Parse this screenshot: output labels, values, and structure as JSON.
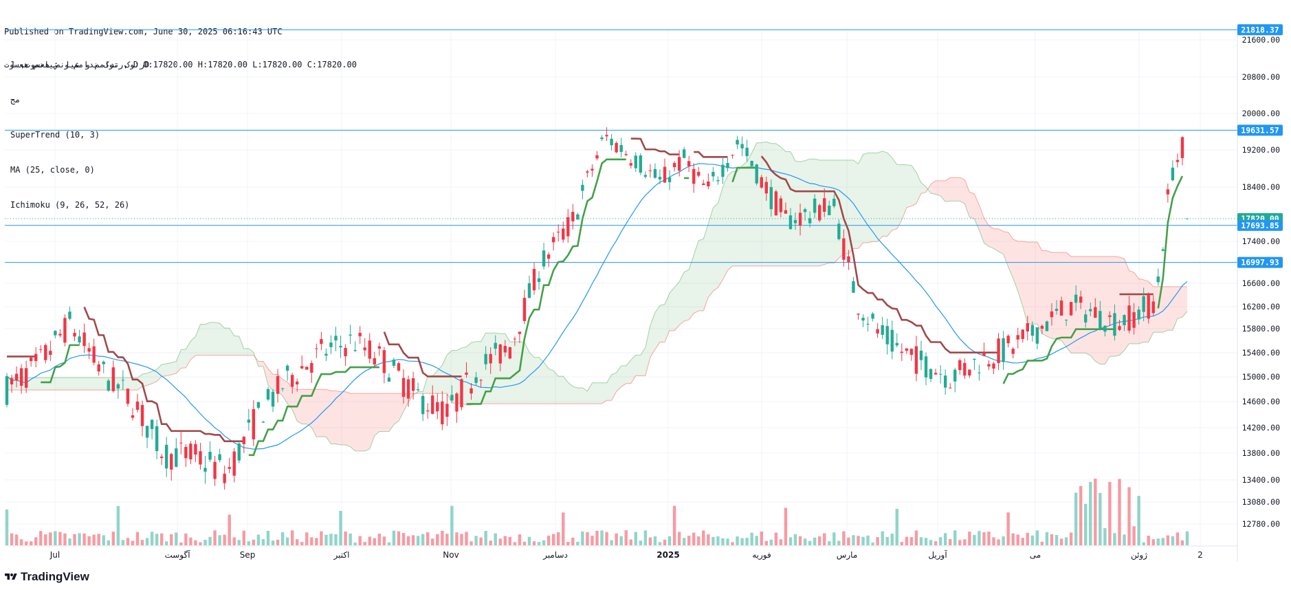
{
  "header": {
    "published": "Published on TradingView.com, June 30, 2025 06:16:43 UTC",
    "symbol_line": "رتوک ندامم و عیانص هعسوت, D O:17820.00 H:17820.00 L:17820.00 C:17820.00"
  },
  "legend": {
    "symbol_tf": "رتوک ندامم و عیانص هعسوت, 1D",
    "sub": "مج",
    "supertrend": "SuperTrend (10, 3)",
    "ma": "MA (25, close, 0)",
    "ichimoku": "Ichimoku (9, 26, 52, 26)"
  },
  "brand": {
    "name": "TradingView"
  },
  "chart_data": {
    "type": "candlestick",
    "y_axis": {
      "min": 12560,
      "max": 22000,
      "side": "right",
      "ticks": [
        "21600.00",
        "20800.00",
        "20000.00",
        "19200.00",
        "18400.00",
        "17400.00",
        "16600.00",
        "16200.00",
        "15800.00",
        "15400.00",
        "15000.00",
        "14600.00",
        "14200.00",
        "13800.00",
        "13400.00",
        "13080.00",
        "12780.00"
      ]
    },
    "x_axis": {
      "labels": [
        "Jul",
        "آگوست",
        "Sep",
        "اکتبر",
        "Nov",
        "دسامبر",
        "2025",
        "فوریه",
        "مارس",
        "آوریل",
        "می",
        "ژوئن",
        "2"
      ]
    },
    "price_labels": [
      {
        "value": 21818.37,
        "text": "21818.37",
        "color": "#2196f3"
      },
      {
        "value": 19631.57,
        "text": "19631.57",
        "color": "#2196f3"
      },
      {
        "value": 17820.0,
        "text": "17820.00",
        "color": "#22ab94"
      },
      {
        "value": 17693.85,
        "text": "17693.85",
        "color": "#2196f3"
      },
      {
        "value": 16997.93,
        "text": "16997.93",
        "color": "#2196f3"
      }
    ],
    "horizontal_lines": [
      21818.37,
      19631.57,
      17693.85,
      16997.93
    ],
    "series": [
      {
        "name": "SuperTrend (10, 3)",
        "kind": "stepline",
        "colors": {
          "up": "#43a047",
          "down": "#a04848"
        }
      },
      {
        "name": "MA (25, close, 0)",
        "kind": "line",
        "color": "#2196f3"
      },
      {
        "name": "Ichimoku (9, 26, 52, 26)",
        "kind": "cloud",
        "colors": {
          "bull": "#43a04733",
          "bear": "#f4433633"
        }
      }
    ],
    "colors": {
      "up": "#22ab94",
      "down": "#f23645",
      "vol_up": "#22ab9480",
      "vol_down": "#f2364580"
    },
    "grid": true
  }
}
